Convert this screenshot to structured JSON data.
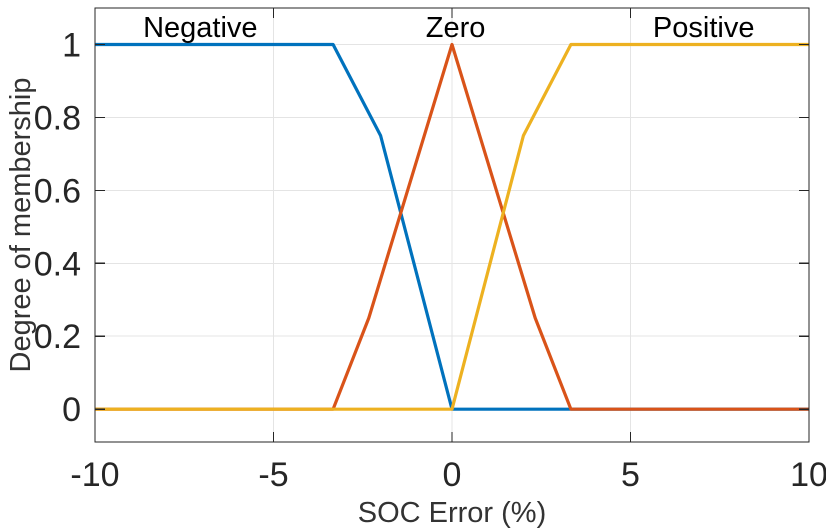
{
  "figure": {
    "background": "#ffffff",
    "axis_color": "#262626",
    "grid_color": "#e4e4e4",
    "tick_label_color": "#262626",
    "axis_label_color": "#333333",
    "annotation_color": "#000000"
  },
  "chart_data": {
    "type": "line",
    "title": "",
    "xlabel": "SOC Error (%)",
    "ylabel": "Degree of membership",
    "xlim": [
      -10,
      10
    ],
    "ylim": [
      -0.09,
      1.1
    ],
    "xticks": [
      -10,
      -5,
      0,
      5,
      10
    ],
    "yticks": [
      0,
      0.2,
      0.4,
      0.6,
      0.8,
      1
    ],
    "grid": true,
    "legend_position": "none",
    "series": [
      {
        "name": "Negative",
        "color": "#0072BD",
        "points": [
          [
            -10,
            1
          ],
          [
            -3.33,
            1
          ],
          [
            -2,
            0.75
          ],
          [
            0,
            0
          ],
          [
            10,
            0
          ]
        ]
      },
      {
        "name": "Zero",
        "color": "#D95319",
        "points": [
          [
            -10,
            0
          ],
          [
            -3.33,
            0
          ],
          [
            -2.33,
            0.25
          ],
          [
            0,
            1
          ],
          [
            2.33,
            0.25
          ],
          [
            3.33,
            0
          ],
          [
            10,
            0
          ]
        ]
      },
      {
        "name": "Positive",
        "color": "#EDB120",
        "points": [
          [
            -10,
            0
          ],
          [
            0,
            0
          ],
          [
            2,
            0.75
          ],
          [
            3.33,
            1
          ],
          [
            10,
            1
          ]
        ]
      }
    ],
    "annotations": [
      {
        "text": "Negative",
        "x": -7.05,
        "y": 1.05
      },
      {
        "text": "Zero",
        "x": 0.1,
        "y": 1.05
      },
      {
        "text": "Positive",
        "x": 7.05,
        "y": 1.05
      }
    ]
  }
}
